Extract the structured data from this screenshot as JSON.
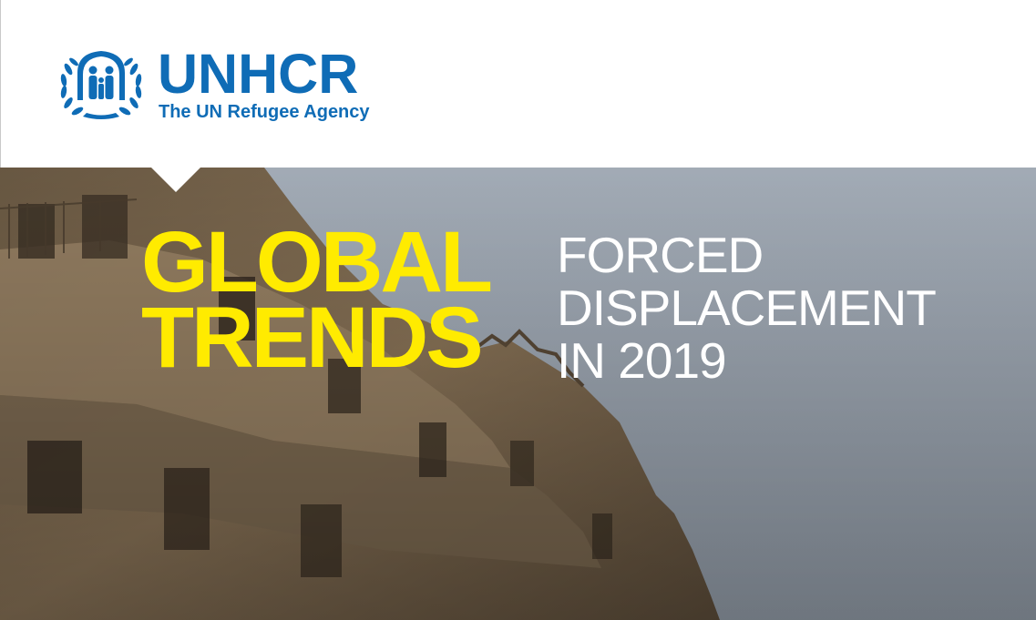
{
  "header": {
    "org_name": "UNHCR",
    "tagline": "The UN Refugee Agency",
    "brand_color": "#0F6CB6",
    "emblem_icon": "unhcr-emblem-icon"
  },
  "cover": {
    "title_line1": "GLOBAL",
    "title_line2": "TRENDS",
    "title_color": "#FFEB00",
    "subtitle_line1": "FORCED",
    "subtitle_line2": "DISPLACEMENT",
    "subtitle_line3": "IN 2019",
    "subtitle_color": "#FFFFFF",
    "photo_subject": "war-damaged-building-photo"
  }
}
